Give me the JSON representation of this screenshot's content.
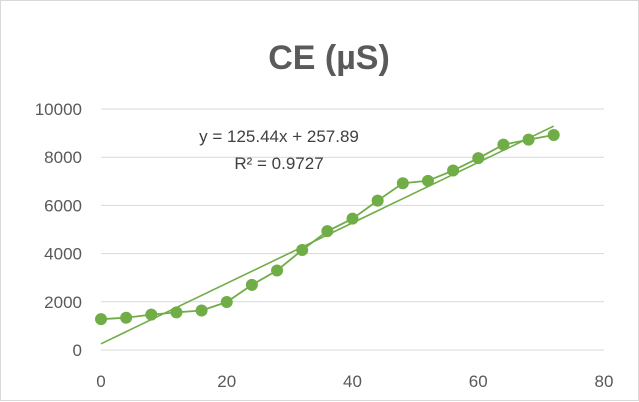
{
  "chart_data": {
    "type": "scatter",
    "title": "CE (µS)",
    "xlabel": "",
    "ylabel": "",
    "xlim": [
      0,
      80
    ],
    "ylim": [
      0,
      10000
    ],
    "x_ticks": [
      "0",
      "20",
      "40",
      "60",
      "80"
    ],
    "y_ticks": [
      "0",
      "2000",
      "4000",
      "6000",
      "8000",
      "10000"
    ],
    "grid": "horizontal",
    "legend": "none",
    "series": [
      {
        "x": [
          0,
          4,
          8,
          12,
          16,
          20,
          24,
          28,
          32,
          36,
          40,
          44,
          48,
          52,
          56,
          60,
          64,
          68,
          72
        ],
        "y": [
          1280,
          1340,
          1470,
          1560,
          1640,
          1990,
          2700,
          3300,
          4150,
          4930,
          5450,
          6200,
          6920,
          7020,
          7450,
          7960,
          8520,
          8730,
          8920
        ],
        "color": "#70ad47",
        "connected": true
      }
    ],
    "trendline": {
      "slope": 125.44,
      "intercept": 257.89,
      "x_range": [
        0,
        72
      ],
      "color": "#70ad47"
    },
    "annotations": {
      "equation": "y = 125.44x + 257.89",
      "r_squared": "R² = 0.9727"
    },
    "colors": {
      "series": "#70ad47",
      "grid": "#d9d9d9",
      "axis_text": "#595959",
      "title": "#5a5a5a"
    }
  }
}
